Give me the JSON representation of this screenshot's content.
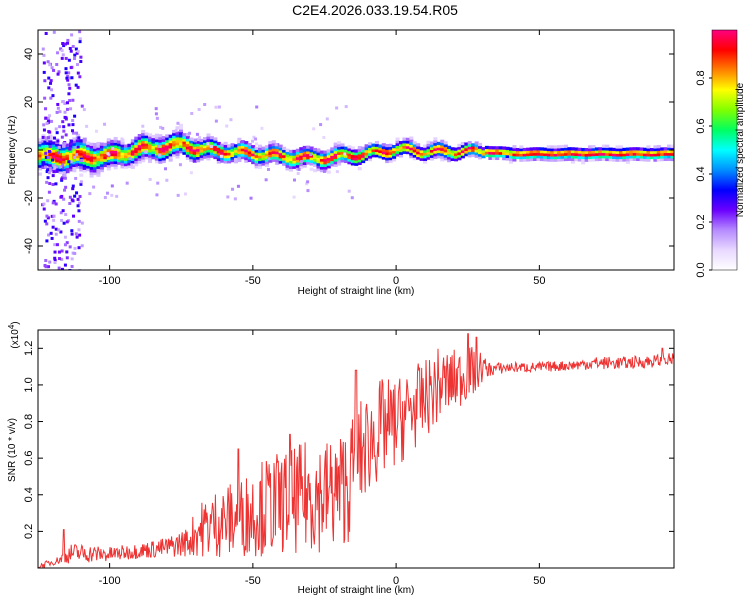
{
  "title": "C2E4.2026.033.19.54.R05",
  "colors": {
    "snr_line": "#ee3333",
    "axis": "#000000",
    "background": "#ffffff"
  },
  "chart_data": [
    {
      "type": "heatmap",
      "name": "spectrogram",
      "xlabel": "Height of straight line (km)",
      "ylabel": "Frequency (Hz)",
      "xlim": [
        -125,
        97
      ],
      "ylim": [
        -50,
        50
      ],
      "xticks": [
        -100,
        -50,
        0,
        50
      ],
      "yticks": [
        -40,
        -20,
        0,
        20,
        40
      ],
      "colorbar": {
        "label": "Normalized spectral amplitude",
        "range": [
          0,
          1
        ],
        "ticks": [
          "0.0",
          "0.2",
          "0.4",
          "0.6",
          "0.8"
        ],
        "ticks_values": [
          0,
          0.2,
          0.4,
          0.6,
          0.8
        ],
        "colormap": [
          "#ffffff",
          "#e8d8ff",
          "#b58aff",
          "#6a00ff",
          "#0000ff",
          "#0090ff",
          "#00ffff",
          "#00ff60",
          "#80ff00",
          "#ffff00",
          "#ff8000",
          "#ff0000",
          "#ff0080"
        ]
      },
      "ridge": {
        "x": [
          -120,
          -110,
          -100,
          -90,
          -80,
          -75,
          -70,
          -60,
          -50,
          -40,
          -30,
          -20,
          -10,
          0,
          10,
          20,
          30,
          40,
          50,
          60,
          70,
          80,
          95
        ],
        "y": [
          -3,
          -3,
          -3,
          0,
          1,
          2,
          0,
          -1,
          -2,
          -3,
          -4,
          -3,
          -2,
          0,
          -1,
          -1,
          -1,
          -2,
          -2,
          -2,
          -2,
          -2,
          -2
        ],
        "half_width_hz": [
          5,
          5,
          4,
          4,
          4,
          4,
          3.5,
          3,
          3,
          3,
          3,
          3,
          2.5,
          2.5,
          2.5,
          2.5,
          2,
          2,
          2,
          2,
          2,
          2,
          2
        ]
      }
    },
    {
      "type": "line",
      "name": "snr",
      "xlabel": "Height of straight line (km)",
      "ylabel": "SNR (10 * v/v)",
      "yscale_label": "(x10",
      "yscale_exp": "4",
      "xlim": [
        -125,
        97
      ],
      "ylim": [
        0,
        1.3
      ],
      "xticks": [
        -100,
        -50,
        0,
        50
      ],
      "yticks": [
        0.2,
        0.4,
        0.6,
        0.8,
        1.0,
        1.2
      ],
      "yticklabels": [
        "0.2",
        "0.4",
        "0.6",
        "0.8",
        "1.0",
        "1.2"
      ],
      "envelope": {
        "x": [
          -125,
          -118,
          -113,
          -100,
          -90,
          -80,
          -72,
          -70,
          -62,
          -55,
          -50,
          -45,
          -40,
          -35,
          -30,
          -25,
          -20,
          -15,
          -14,
          -10,
          -5,
          0,
          5,
          10,
          15,
          20,
          25,
          28,
          30,
          32,
          35,
          40,
          50,
          60,
          70,
          80,
          90,
          97
        ],
        "baseline": [
          0.0,
          0.03,
          0.05,
          0.05,
          0.07,
          0.08,
          0.1,
          0.12,
          0.14,
          0.15,
          0.17,
          0.18,
          0.2,
          0.2,
          0.22,
          0.22,
          0.24,
          0.3,
          0.4,
          0.52,
          0.6,
          0.65,
          0.72,
          0.8,
          0.88,
          0.92,
          0.98,
          1.0,
          1.05,
          1.06,
          1.07,
          1.08,
          1.08,
          1.09,
          1.1,
          1.1,
          1.11,
          1.12
        ],
        "amplitude": [
          0.02,
          0.03,
          0.08,
          0.06,
          0.06,
          0.08,
          0.12,
          0.2,
          0.28,
          0.3,
          0.35,
          0.4,
          0.4,
          0.42,
          0.45,
          0.45,
          0.45,
          0.5,
          0.45,
          0.4,
          0.4,
          0.35,
          0.35,
          0.3,
          0.3,
          0.25,
          0.22,
          0.18,
          0.12,
          0.06,
          0.05,
          0.04,
          0.04,
          0.04,
          0.05,
          0.05,
          0.05,
          0.05
        ]
      },
      "peaks": [
        {
          "x": -116,
          "y": 0.21
        },
        {
          "x": -55,
          "y": 0.65
        },
        {
          "x": -37,
          "y": 0.73
        },
        {
          "x": -14,
          "y": 1.08
        },
        {
          "x": 25,
          "y": 1.28
        },
        {
          "x": 28,
          "y": 1.26
        },
        {
          "x": 93,
          "y": 1.2
        }
      ]
    }
  ]
}
